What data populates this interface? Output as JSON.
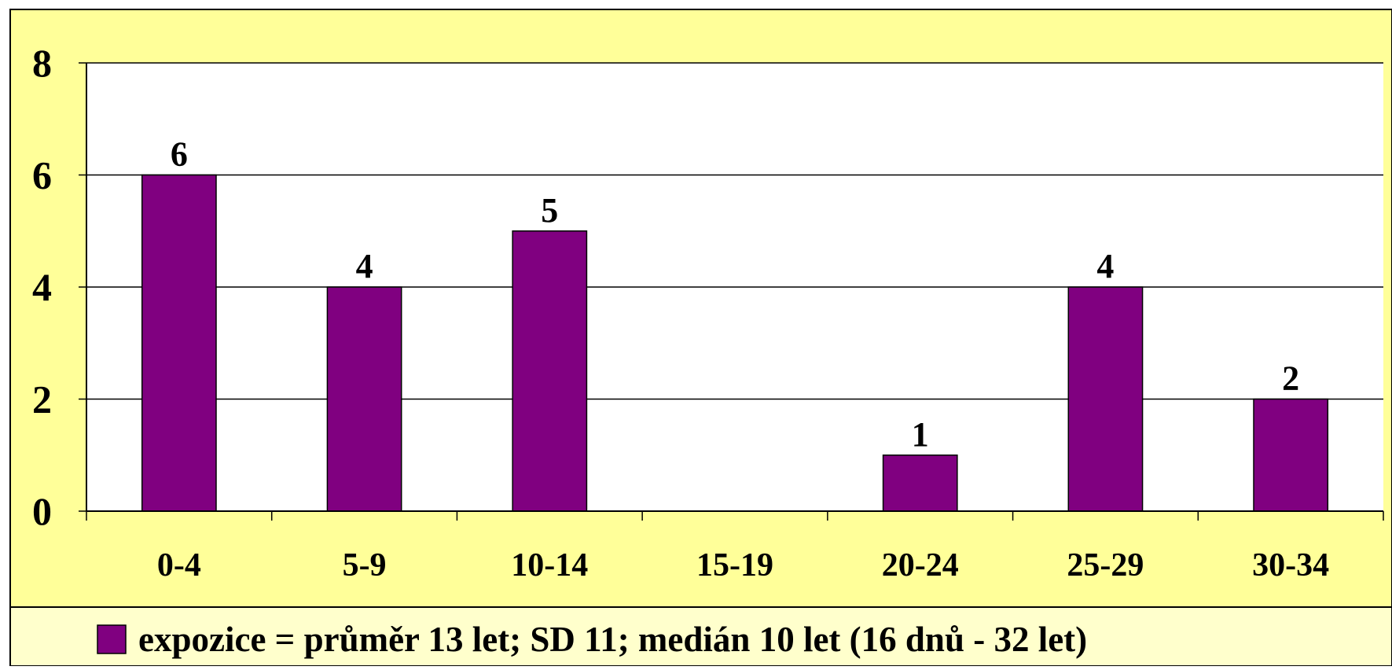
{
  "colors": {
    "chart_area": "#ffff99",
    "plot_area": "#ffffff",
    "bar_fill": "#800080",
    "bar_stroke": "#000000",
    "grid": "#000000",
    "legend_bg": "#ffffcc"
  },
  "chart_data": {
    "type": "bar",
    "categories": [
      "0-4",
      "5-9",
      "10-14",
      "15-19",
      "20-24",
      "25-29",
      "30-34"
    ],
    "series": [
      {
        "name": "expozice = průměr 13 let; SD 11; medián 10 let (16 dnů - 32 let)",
        "values": [
          6,
          4,
          5,
          0,
          1,
          4,
          2
        ]
      }
    ],
    "data_labels": [
      "6",
      "4",
      "5",
      "",
      "1",
      "4",
      "2"
    ],
    "ylim": [
      0,
      8
    ],
    "yticks": [
      0,
      2,
      4,
      6,
      8
    ],
    "grid": true,
    "legend_position": "bottom"
  }
}
